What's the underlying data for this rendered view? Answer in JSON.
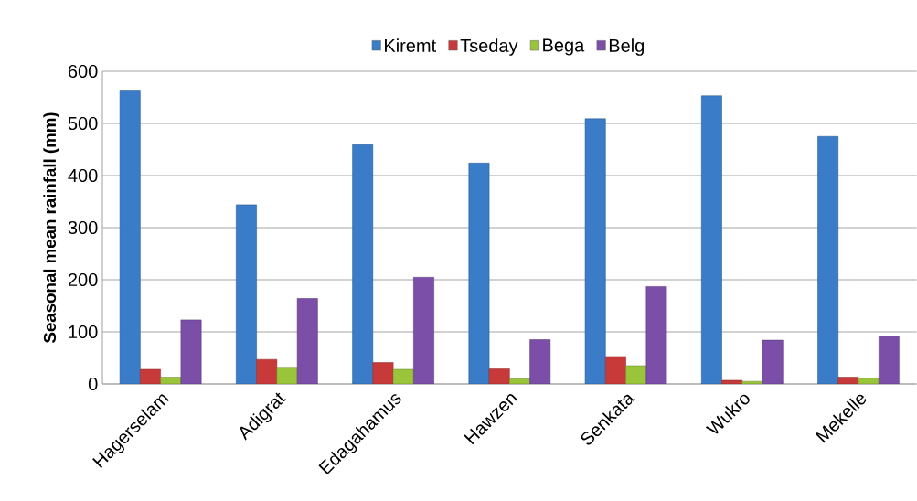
{
  "chart_data": {
    "type": "bar",
    "ylabel": "Seasonal mean rainfall (mm)",
    "categories": [
      "Hagerselam",
      "Adigrat",
      "Edagahamus",
      "Hawzen",
      "Senkata",
      "Wukro",
      "Mekelle"
    ],
    "series": [
      {
        "name": "Kiremt",
        "color": "#3a7cc8",
        "values": [
          564,
          344,
          459,
          424,
          509,
          553,
          475
        ]
      },
      {
        "name": "Tseday",
        "color": "#c83a3a",
        "values": [
          28,
          47,
          41,
          29,
          53,
          7,
          13
        ]
      },
      {
        "name": "Bega",
        "color": "#9ac43a",
        "values": [
          13,
          32,
          28,
          10,
          35,
          5,
          11
        ]
      },
      {
        "name": "Belg",
        "color": "#7b4fa8",
        "values": [
          123,
          164,
          205,
          85,
          187,
          84,
          92
        ]
      }
    ],
    "ylim": [
      0,
      600
    ],
    "yticks": [
      0,
      100,
      200,
      300,
      400,
      500,
      600
    ],
    "grid": "y",
    "legend": "top"
  }
}
